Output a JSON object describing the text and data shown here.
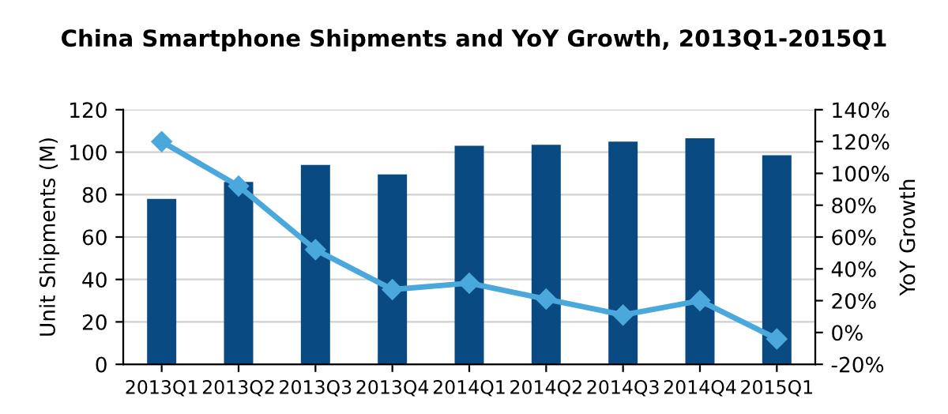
{
  "chart_data": {
    "type": "bar",
    "title": "China Smartphone Shipments and YoY Growth, 2013Q1-2015Q1",
    "categories": [
      "2013Q1",
      "2013Q2",
      "2013Q3",
      "2013Q4",
      "2014Q1",
      "2014Q2",
      "2014Q3",
      "2014Q4",
      "2015Q1"
    ],
    "series": [
      {
        "color": "#0a4a82",
        "values": [
          78,
          86,
          94,
          89.5,
          103,
          103.5,
          105,
          106.5,
          98.5
        ]
      },
      {
        "type": "line",
        "axis": "y2",
        "color": "#4aa8dc",
        "marker": "diamond",
        "values": [
          120,
          92,
          52,
          27,
          31,
          21,
          11,
          20,
          -4
        ]
      }
    ],
    "ylabel": "Unit Shipments (M)",
    "y2label": "YoY Growth",
    "ylim": [
      0,
      120
    ],
    "yticks": [
      0,
      20,
      40,
      60,
      80,
      100,
      120
    ],
    "y2lim": [
      -20,
      140
    ],
    "y2ticks": [
      {
        "value": -20,
        "label": "-20%"
      },
      {
        "value": 0,
        "label": "0%"
      },
      {
        "value": 20,
        "label": "20%"
      },
      {
        "value": 40,
        "label": "40%"
      },
      {
        "value": 60,
        "label": "60%"
      },
      {
        "value": 80,
        "label": "80%"
      },
      {
        "value": 100,
        "label": "100%"
      },
      {
        "value": 120,
        "label": "120%"
      },
      {
        "value": 140,
        "label": "140%"
      }
    ],
    "grid": "y"
  }
}
